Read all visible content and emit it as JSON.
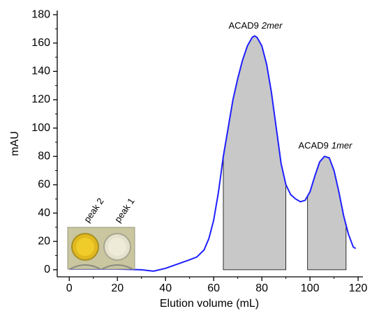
{
  "chart_data": {
    "type": "line",
    "xlabel": "Elution volume (mL)",
    "ylabel": "mAU",
    "series": [
      {
        "color": "#1f1fff",
        "x": [
          0,
          10,
          20,
          30,
          35,
          40,
          45,
          50,
          53,
          56,
          58,
          60,
          62,
          64,
          66,
          68,
          70,
          72,
          74,
          76,
          77,
          78,
          80,
          82,
          84,
          86,
          88,
          90,
          92,
          94,
          96,
          98,
          100,
          102,
          104,
          106,
          108,
          110,
          112,
          114,
          116,
          118,
          119
        ],
        "values": [
          0.5,
          0.5,
          0.5,
          0,
          -1,
          1,
          4,
          7,
          9,
          14,
          22,
          35,
          55,
          80,
          100,
          120,
          135,
          148,
          158,
          164,
          165,
          164,
          158,
          145,
          125,
          100,
          75,
          60,
          53,
          50,
          48,
          49,
          55,
          66,
          76,
          80,
          79,
          70,
          55,
          38,
          25,
          16,
          15
        ]
      }
    ],
    "shaded_ranges": [
      [
        64,
        90
      ],
      [
        99,
        115
      ]
    ],
    "shade_color": "#c8c8c8",
    "annotations": [
      {
        "text": "ACAD9",
        "italic": "2mer"
      },
      {
        "text": "ACAD9",
        "italic": "1mer"
      }
    ],
    "inset_labels": [
      "peak 2",
      "peak 1"
    ],
    "xlim": [
      -5,
      122
    ],
    "ylim": [
      -5,
      183
    ],
    "xticks": [
      0,
      20,
      40,
      60,
      80,
      100,
      120
    ],
    "yticks": [
      0,
      20,
      40,
      60,
      80,
      100,
      120,
      140,
      160,
      180
    ]
  }
}
